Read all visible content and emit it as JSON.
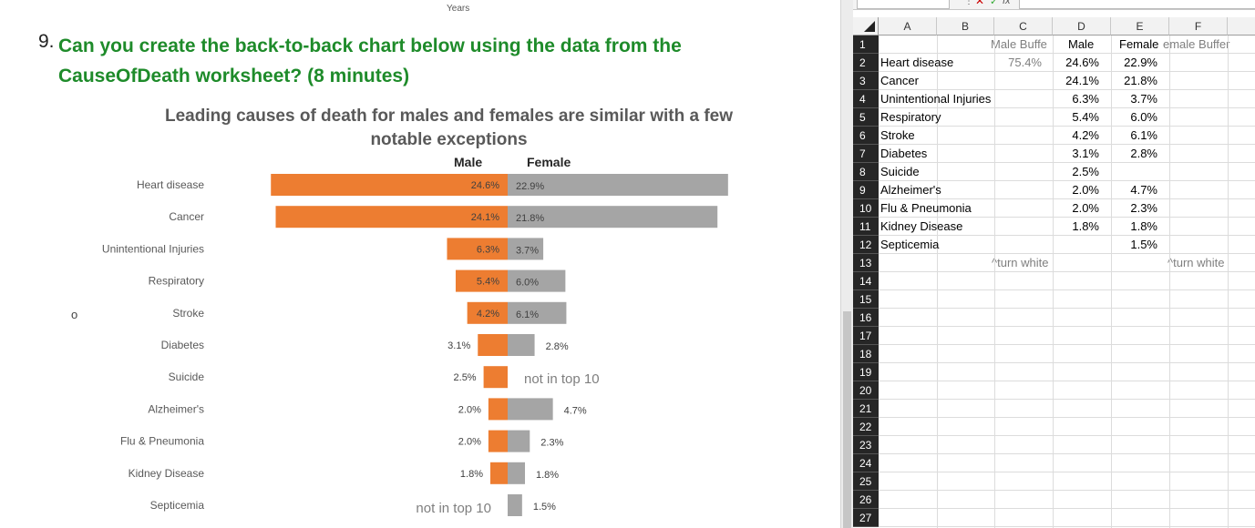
{
  "document": {
    "years_label": "Years",
    "question_number": "9.",
    "question_text": "Can you create the back-to-back chart below using the data from the CauseOfDeath worksheet? (8 minutes)",
    "bullet": "o"
  },
  "chart_data": {
    "type": "bar",
    "title": "Leading causes of death for males and females are similar with a few notable exceptions",
    "legend": [
      "Male",
      "Female"
    ],
    "categories": [
      "Heart disease",
      "Cancer",
      "Unintentional Injuries",
      "Respiratory",
      "Stroke",
      "Diabetes",
      "Suicide",
      "Alzheimer's",
      "Flu & Pneumonia",
      "Kidney Disease",
      "Septicemia"
    ],
    "series": [
      {
        "name": "Male",
        "color": "#ed7d31",
        "values": [
          24.6,
          24.1,
          6.3,
          5.4,
          4.2,
          3.1,
          2.5,
          2.0,
          2.0,
          1.8,
          null
        ]
      },
      {
        "name": "Female",
        "color": "#a5a5a5",
        "values": [
          22.9,
          21.8,
          3.7,
          6.0,
          6.1,
          2.8,
          null,
          4.7,
          2.3,
          1.8,
          1.5
        ]
      }
    ],
    "male_labels": [
      "24.6%",
      "24.1%",
      "6.3%",
      "5.4%",
      "4.2%",
      "3.1%",
      "2.5%",
      "2.0%",
      "2.0%",
      "1.8%",
      "not in top 10"
    ],
    "female_labels": [
      "22.9%",
      "21.8%",
      "3.7%",
      "6.0%",
      "6.1%",
      "2.8%",
      "not in top 10",
      "4.7%",
      "2.3%",
      "1.8%",
      "1.5%"
    ],
    "label_positions": {
      "male": [
        "inside",
        "inside",
        "inside",
        "inside",
        "inside",
        "outside",
        "outside",
        "outside",
        "outside",
        "outside",
        "note"
      ],
      "female": [
        "inside",
        "inside",
        "inside",
        "inside",
        "inside",
        "outside",
        "note",
        "outside",
        "outside",
        "outside",
        "outside"
      ]
    },
    "grid": false
  },
  "spreadsheet": {
    "columns": [
      "A",
      "B",
      "C",
      "D",
      "E",
      "F"
    ],
    "row_numbers": [
      "1",
      "2",
      "3",
      "4",
      "5",
      "6",
      "7",
      "8",
      "9",
      "10",
      "11",
      "12",
      "13",
      "14",
      "15",
      "16",
      "17",
      "18",
      "19",
      "20",
      "21",
      "22",
      "23",
      "24",
      "25",
      "26",
      "27"
    ],
    "header_row": {
      "C": "Male Buffe",
      "D": "Male",
      "E": "Female",
      "F": "emale Buffer"
    },
    "rows": [
      {
        "label": "Heart disease",
        "c": "75.4%",
        "d": "24.6%",
        "e": "22.9%"
      },
      {
        "label": "Cancer",
        "c": "",
        "d": "24.1%",
        "e": "21.8%"
      },
      {
        "label": "Unintentional Injuries",
        "c": "",
        "d": "6.3%",
        "e": "3.7%"
      },
      {
        "label": "Respiratory",
        "c": "",
        "d": "5.4%",
        "e": "6.0%"
      },
      {
        "label": "Stroke",
        "c": "",
        "d": "4.2%",
        "e": "6.1%"
      },
      {
        "label": "Diabetes",
        "c": "",
        "d": "3.1%",
        "e": "2.8%"
      },
      {
        "label": "Suicide",
        "c": "",
        "d": "2.5%",
        "e": ""
      },
      {
        "label": "Alzheimer's",
        "c": "",
        "d": "2.0%",
        "e": "4.7%"
      },
      {
        "label": "Flu & Pneumonia",
        "c": "",
        "d": "2.0%",
        "e": "2.3%"
      },
      {
        "label": "Kidney Disease",
        "c": "",
        "d": "1.8%",
        "e": "1.8%"
      },
      {
        "label": "Septicemia",
        "c": "",
        "d": "",
        "e": "1.5%"
      }
    ],
    "note_c": "^turn white",
    "note_f": "^turn white",
    "formula_bar": {
      "fx": "fx",
      "cancel": "✕",
      "enter": "✓",
      "dots": "⋮"
    }
  }
}
